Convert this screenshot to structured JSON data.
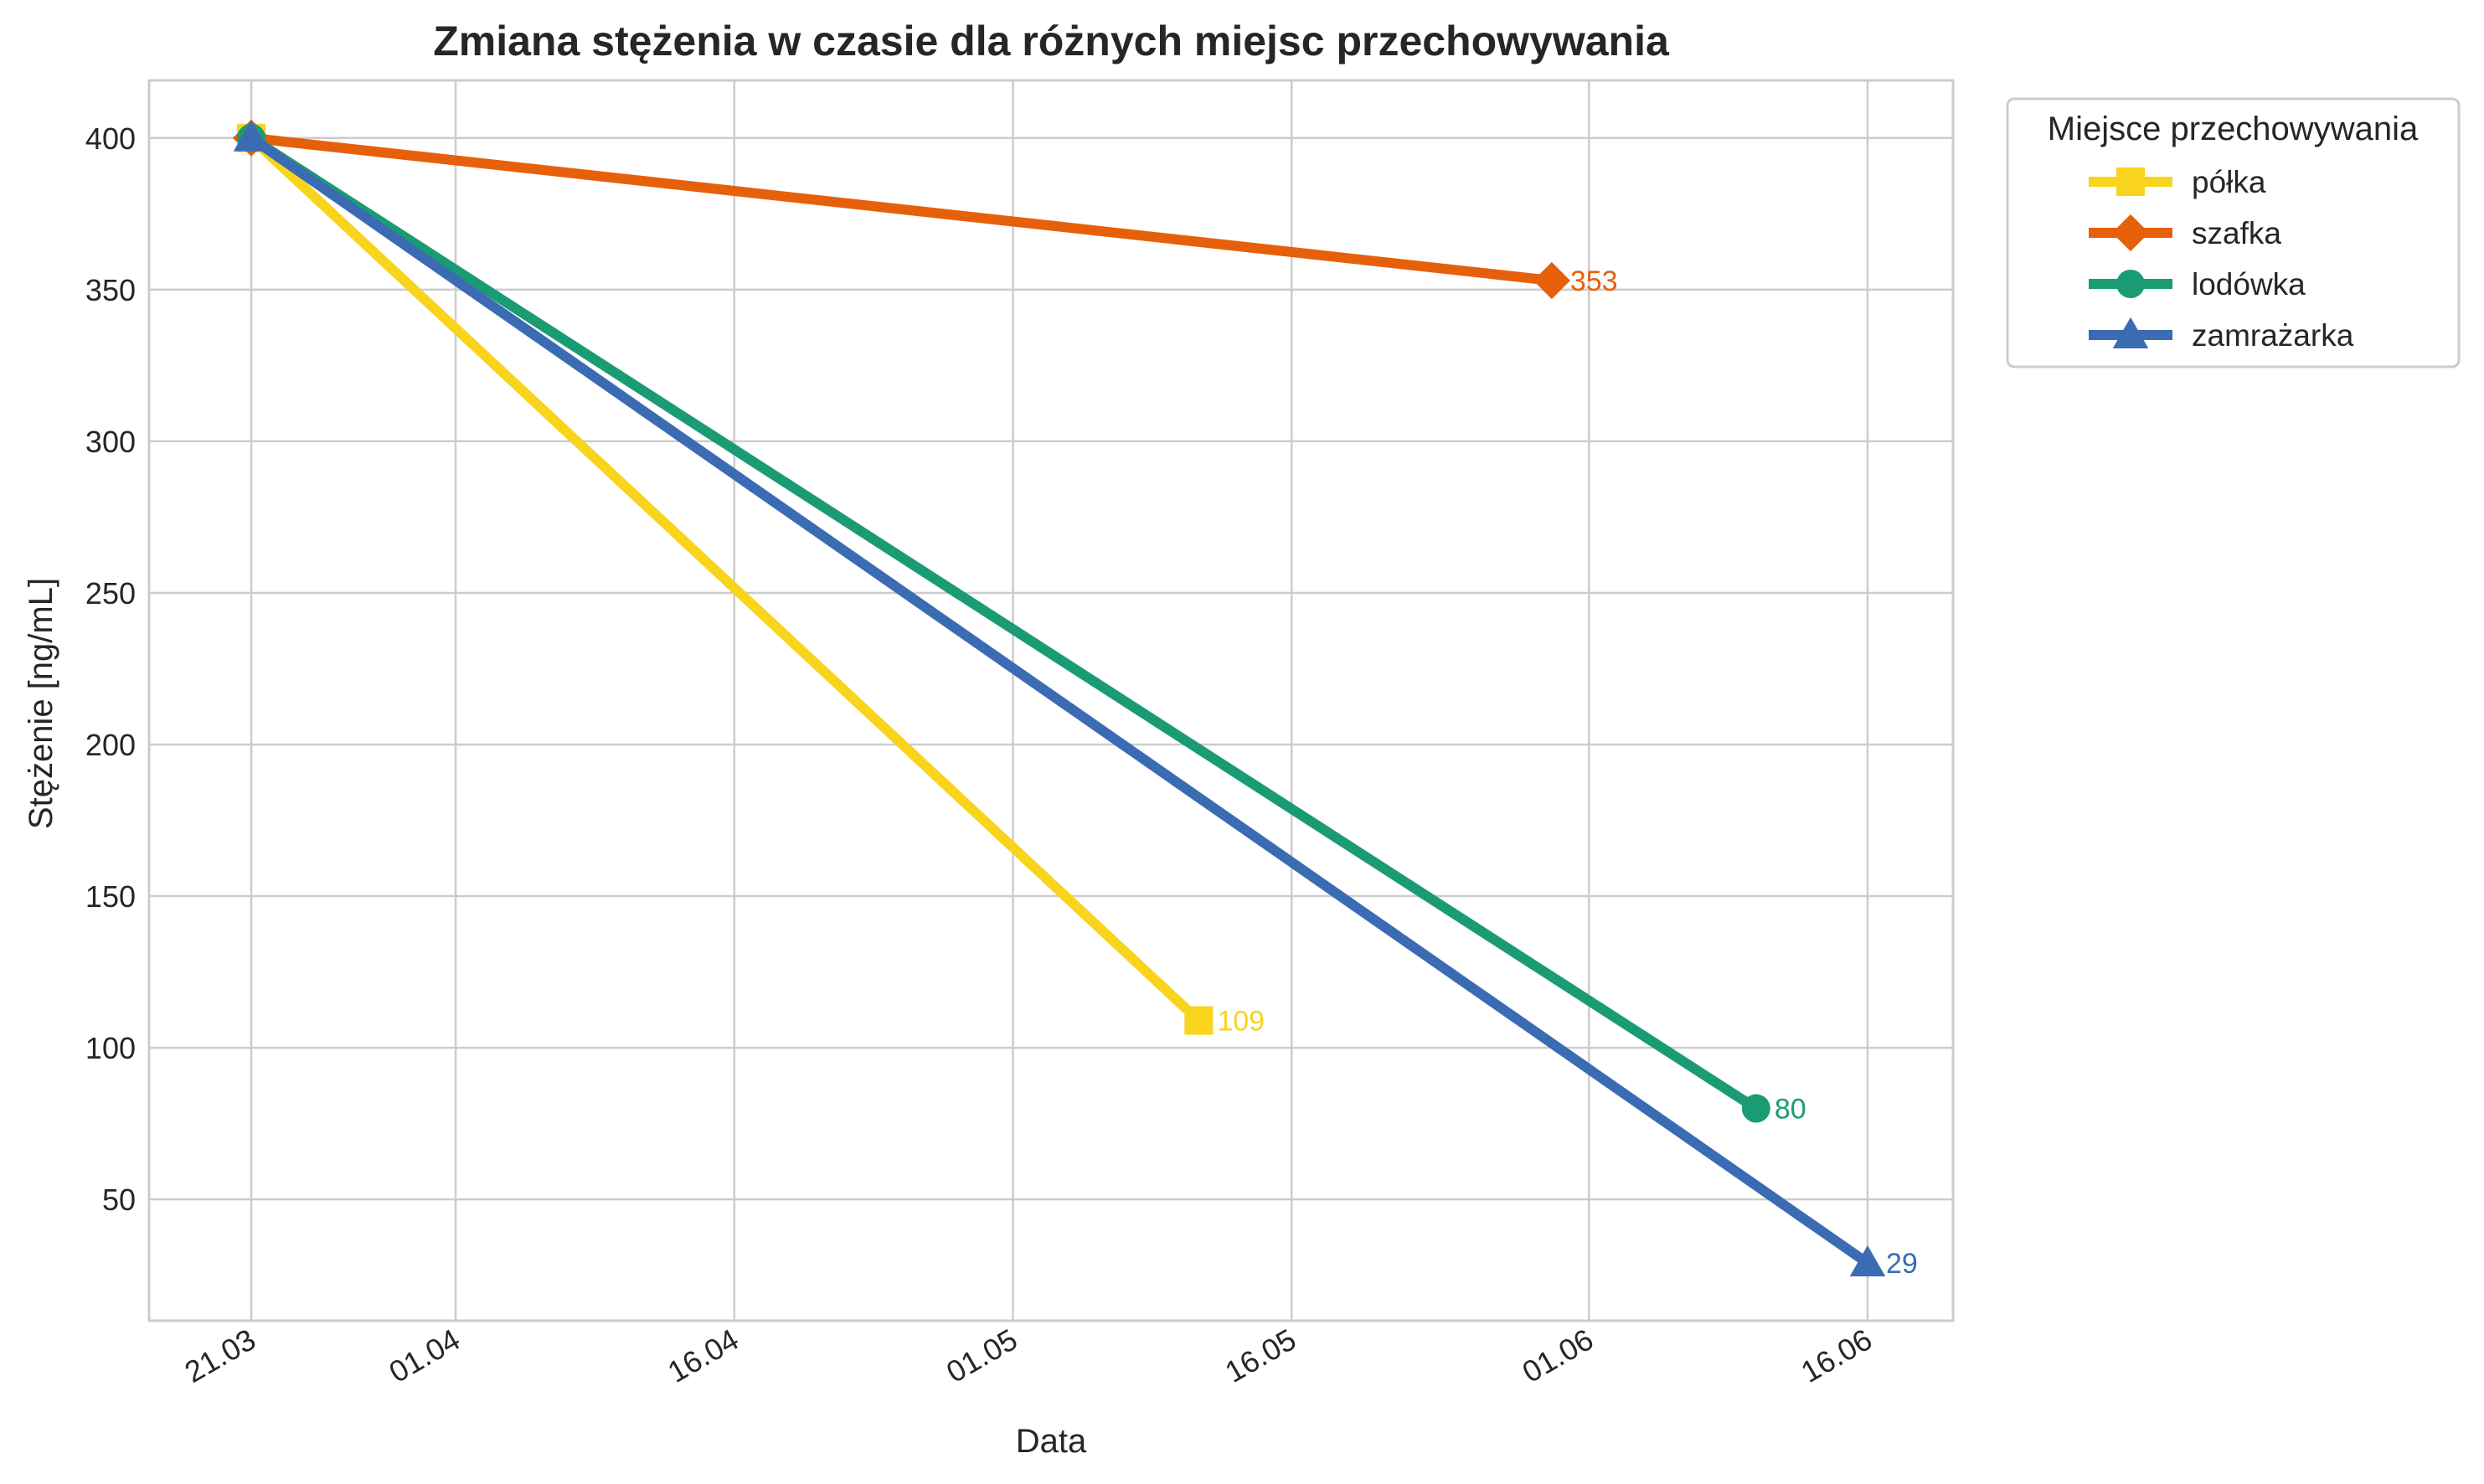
{
  "chart_data": {
    "type": "line",
    "title": "Zmiana stężenia w czasie dla różnych miejsc przechowywania",
    "xlabel": "Data",
    "ylabel": "Stężenie [ng/mL]",
    "x_axis": {
      "type": "date",
      "ticks": [
        "21.03",
        "01.04",
        "16.04",
        "01.05",
        "16.05",
        "01.06",
        "16.06"
      ]
    },
    "y_axis": {
      "ticks": [
        50,
        100,
        150,
        200,
        250,
        300,
        350,
        400
      ],
      "ylim": [
        10,
        419
      ]
    },
    "grid": true,
    "legend": {
      "title": "Miejsce przechowywania",
      "placement": "outside-top-right"
    },
    "series": [
      {
        "name": "półka",
        "color": "#F8D41D",
        "marker": "square",
        "points": [
          {
            "x": "21.03",
            "y": 400
          },
          {
            "x": "11.05",
            "y": 109
          }
        ],
        "end_label": "109"
      },
      {
        "name": "szafka",
        "color": "#E6600B",
        "marker": "diamond",
        "points": [
          {
            "x": "21.03",
            "y": 400
          },
          {
            "x": "30.05",
            "y": 353
          }
        ],
        "end_label": "353"
      },
      {
        "name": "lodówka",
        "color": "#1B9B74",
        "marker": "circle",
        "points": [
          {
            "x": "21.03",
            "y": 400
          },
          {
            "x": "10.06",
            "y": 80
          }
        ],
        "end_label": "80"
      },
      {
        "name": "zamrażarka",
        "color": "#3A6BB3",
        "marker": "triangle",
        "points": [
          {
            "x": "21.03",
            "y": 400
          },
          {
            "x": "16.06",
            "y": 29
          }
        ],
        "end_label": "29"
      }
    ]
  }
}
